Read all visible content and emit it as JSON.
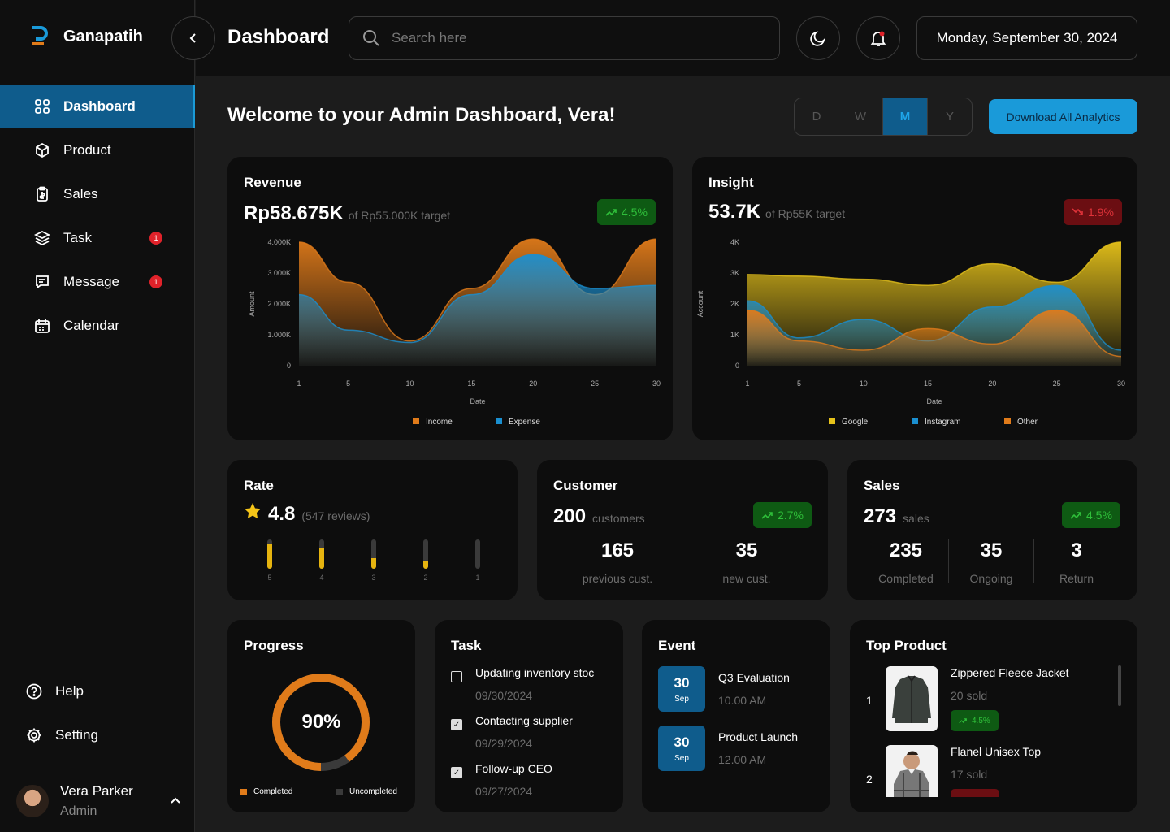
{
  "brand": {
    "name": "Ganapatih"
  },
  "sidebar": {
    "items": [
      {
        "label": "Dashboard",
        "icon": "grid-icon",
        "active": true
      },
      {
        "label": "Product",
        "icon": "box-icon"
      },
      {
        "label": "Sales",
        "icon": "clipboard-icon"
      },
      {
        "label": "Task",
        "icon": "layers-icon",
        "badge": "1"
      },
      {
        "label": "Message",
        "icon": "chat-icon",
        "badge": "1"
      },
      {
        "label": "Calendar",
        "icon": "calendar-icon"
      }
    ],
    "bottom": [
      {
        "label": "Help",
        "icon": "help-icon"
      },
      {
        "label": "Setting",
        "icon": "gear-icon"
      }
    ],
    "user": {
      "name": "Vera Parker",
      "role": "Admin"
    }
  },
  "header": {
    "title": "Dashboard",
    "search_placeholder": "Search here",
    "date": "Monday, September 30, 2024"
  },
  "welcome": "Welcome to your Admin Dashboard, Vera!",
  "period": {
    "options": [
      "D",
      "W",
      "M",
      "Y"
    ],
    "selected": "M"
  },
  "download_label": "Download All Analytics",
  "revenue": {
    "title": "Revenue",
    "value": "Rp58.675K",
    "target": "of Rp55.000K target",
    "change": "4.5%"
  },
  "insight": {
    "title": "Insight",
    "value": "53.7K",
    "target": "of Rp55K target",
    "change": "1.9%"
  },
  "rate": {
    "title": "Rate",
    "value": "4.8",
    "reviews": "(547 reviews)",
    "bars": [
      {
        "label": "5",
        "fill": 0.85
      },
      {
        "label": "4",
        "fill": 0.7
      },
      {
        "label": "3",
        "fill": 0.35
      },
      {
        "label": "2",
        "fill": 0.25
      },
      {
        "label": "1",
        "fill": 0
      }
    ]
  },
  "customer": {
    "title": "Customer",
    "value": "200",
    "unit": "customers",
    "change": "2.7%",
    "stats": [
      {
        "n": "165",
        "l": "previous cust."
      },
      {
        "n": "35",
        "l": "new cust."
      }
    ]
  },
  "sales": {
    "title": "Sales",
    "value": "273",
    "unit": "sales",
    "change": "4.5%",
    "stats": [
      {
        "n": "235",
        "l": "Completed"
      },
      {
        "n": "35",
        "l": "Ongoing"
      },
      {
        "n": "3",
        "l": "Return"
      }
    ]
  },
  "progress": {
    "title": "Progress",
    "value": "90%",
    "percent": 90,
    "legend": [
      "Completed",
      "Uncompleted"
    ]
  },
  "task": {
    "title": "Task",
    "items": [
      {
        "title": "Updating inventory stoc",
        "date": "09/30/2024",
        "done": false
      },
      {
        "title": "Contacting supplier",
        "date": "09/29/2024",
        "done": true
      },
      {
        "title": "Follow-up CEO",
        "date": "09/27/2024",
        "done": true
      }
    ]
  },
  "event": {
    "title": "Event",
    "items": [
      {
        "day": "30",
        "month": "Sep",
        "title": "Q3 Evaluation",
        "time": "10.00 AM"
      },
      {
        "day": "30",
        "month": "Sep",
        "title": "Product Launch",
        "time": "12.00 AM"
      }
    ]
  },
  "top_product": {
    "title": "Top Product",
    "items": [
      {
        "rank": "1",
        "name": "Zippered Fleece Jacket",
        "sold": "20 sold",
        "change": "4.5%"
      },
      {
        "rank": "2",
        "name": "Flanel Unisex Top",
        "sold": "17 sold",
        "change": ""
      }
    ]
  },
  "chart_data": [
    {
      "type": "area",
      "title": "Revenue",
      "xlabel": "Date",
      "ylabel": "Amount",
      "x": [
        1,
        5,
        10,
        15,
        20,
        25,
        30
      ],
      "yticks": [
        "0",
        "1.000K",
        "2.000K",
        "3.000K",
        "4.000K"
      ],
      "ylim": [
        0,
        4000
      ],
      "series": [
        {
          "name": "Income",
          "color": "#e07b1a",
          "values": [
            4000,
            2700,
            800,
            2500,
            4100,
            2300,
            4100
          ]
        },
        {
          "name": "Expense",
          "color": "#1a8fd0",
          "values": [
            2300,
            1150,
            750,
            2300,
            3600,
            2500,
            2600
          ]
        }
      ]
    },
    {
      "type": "area",
      "title": "Insight",
      "xlabel": "Date",
      "ylabel": "Account",
      "x": [
        1,
        5,
        10,
        15,
        20,
        25,
        30
      ],
      "yticks": [
        "0",
        "1K",
        "2K",
        "3K",
        "4K"
      ],
      "ylim": [
        0,
        4000
      ],
      "series": [
        {
          "name": "Google",
          "color": "#e6c21a",
          "values": [
            2950,
            2900,
            2800,
            2600,
            3300,
            2700,
            4000
          ]
        },
        {
          "name": "Instagram",
          "color": "#1a8fd0",
          "values": [
            2100,
            900,
            1500,
            800,
            1900,
            2600,
            500
          ]
        },
        {
          "name": "Other",
          "color": "#e07b1a",
          "values": [
            1800,
            800,
            500,
            1200,
            700,
            1800,
            300
          ]
        }
      ]
    }
  ],
  "colors": {
    "accent": "#1a9ad9",
    "positive": "#2fbf3a",
    "negative": "#e0333a",
    "star": "#f5c518"
  }
}
